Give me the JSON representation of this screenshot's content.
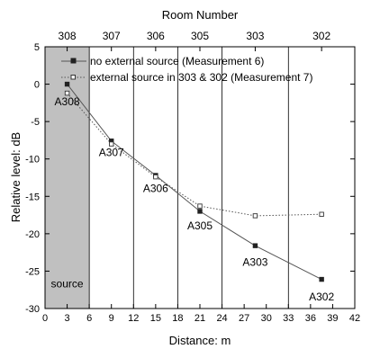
{
  "chart_data": {
    "type": "line",
    "title": "",
    "top_axis_title": "Room Number",
    "xlabel": "Distance: m",
    "ylabel": "Relative level: dB",
    "xlim": [
      0,
      42
    ],
    "ylim": [
      -30,
      5
    ],
    "x_ticks": [
      0,
      3,
      6,
      9,
      12,
      15,
      18,
      21,
      24,
      27,
      30,
      33,
      36,
      39,
      42
    ],
    "y_ticks": [
      5,
      0,
      -5,
      -10,
      -15,
      -20,
      -25,
      -30
    ],
    "room_boundaries": [
      6,
      12,
      18,
      24,
      33
    ],
    "room_labels": [
      {
        "label": "308",
        "x": 3
      },
      {
        "label": "307",
        "x": 9
      },
      {
        "label": "306",
        "x": 15
      },
      {
        "label": "305",
        "x": 21
      },
      {
        "label": "303",
        "x": 28.5
      },
      {
        "label": "302",
        "x": 37.5
      }
    ],
    "source_region": {
      "x_range": [
        0,
        6
      ],
      "label": "source",
      "color": "#c0c0c0"
    },
    "series": [
      {
        "name": "no external source (Measurement 6)",
        "marker": "filled-square",
        "line_style": "solid",
        "color": "#555555",
        "x": [
          3,
          9,
          15,
          21,
          28.5,
          37.5
        ],
        "y": [
          0,
          -7.6,
          -12.2,
          -17.0,
          -21.6,
          -26.1
        ]
      },
      {
        "name": "external source in 303 & 302 (Measurement 7)",
        "marker": "open-square",
        "line_style": "dotted",
        "color": "#555555",
        "x": [
          3,
          9,
          15,
          21,
          28.5,
          37.5
        ],
        "y": [
          -1.2,
          -8.0,
          -12.4,
          -16.3,
          -17.6,
          -17.4
        ]
      }
    ],
    "point_labels": [
      {
        "text": "A308",
        "x": 3,
        "y": -2.8
      },
      {
        "text": "A307",
        "x": 9,
        "y": -9.6
      },
      {
        "text": "A306",
        "x": 15,
        "y": -14.4
      },
      {
        "text": "A305",
        "x": 21,
        "y": -19.4
      },
      {
        "text": "A303",
        "x": 28.5,
        "y": -24.3
      },
      {
        "text": "A302",
        "x": 37.5,
        "y": -28.9
      }
    ],
    "legend_position": "top",
    "grid": false
  }
}
